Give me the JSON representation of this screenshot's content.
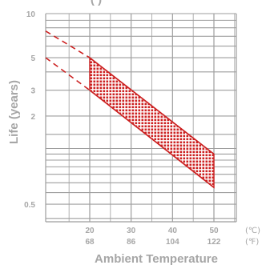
{
  "chart_data": {
    "type": "line",
    "title_fragment": "(     )",
    "ylabel": "Life (years)",
    "xlabel": "Ambient Temperature",
    "y_scale": "log",
    "ylim": [
      0.2,
      10
    ],
    "xlim": [
      10,
      60
    ],
    "y_tick_labels": [
      {
        "value": 10,
        "label": "10"
      },
      {
        "value": 5,
        "label": "5"
      },
      {
        "value": 3,
        "label": "3"
      },
      {
        "value": 2,
        "label": "2"
      },
      {
        "value": 0.5,
        "label": "0.5"
      }
    ],
    "x_tick_labels_c": [
      {
        "value": 20,
        "label": "20"
      },
      {
        "value": 30,
        "label": "30"
      },
      {
        "value": 40,
        "label": "40"
      },
      {
        "value": 50,
        "label": "50"
      }
    ],
    "x_tick_labels_f": [
      "68",
      "86",
      "104",
      "122"
    ],
    "unit_c": "(℃)",
    "unit_f": "(℉)",
    "grid": true,
    "colors": {
      "band": "#cc2222",
      "grid": "#9e9e9e",
      "text": "#a6a6a6"
    },
    "series": [
      {
        "role": "upper",
        "points": [
          [
            20,
            5.0
          ],
          [
            50,
            1.1
          ]
        ],
        "extrapolated_to": [
          [
            10,
            7.6
          ]
        ]
      },
      {
        "role": "lower",
        "points": [
          [
            20,
            3.0
          ],
          [
            50,
            0.65
          ]
        ],
        "extrapolated_to": [
          [
            10,
            5.0
          ]
        ]
      }
    ]
  }
}
